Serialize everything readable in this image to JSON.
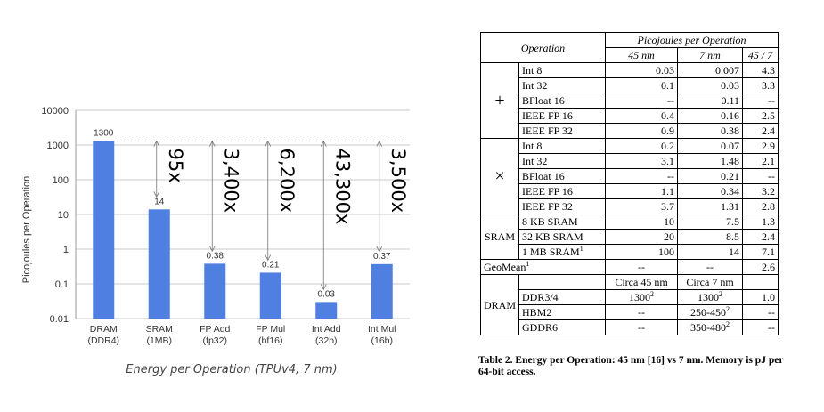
{
  "chart_data": {
    "type": "bar",
    "scale": "log",
    "ylabel": "Picojoules per Operation",
    "ylim": [
      0.01,
      10000
    ],
    "yticks": [
      "10000",
      "1000",
      "100",
      "10",
      "1",
      "0.1",
      "0.01"
    ],
    "ytick_values": [
      10000,
      1000,
      100,
      10,
      1,
      0.1,
      0.01
    ],
    "categories": [
      "DRAM\n(DDR4)",
      "SRAM\n(1MB)",
      "FP Add\n(fp32)",
      "FP Mul\n(bf16)",
      "Int Add\n(32b)",
      "Int Mul\n(16b)"
    ],
    "values": [
      1300,
      14,
      0.38,
      0.21,
      0.03,
      0.37
    ],
    "value_labels": [
      "1300",
      "14",
      "0.38",
      "0.21",
      "0.03",
      "0.37"
    ],
    "ratio_labels": [
      "95x",
      "3,400x",
      "6,200x",
      "43,300x",
      "3,500x"
    ],
    "bar_color": "#4f7fe0",
    "grid": true
  },
  "chart_caption": "Energy per Operation (TPUv4, 7 nm)",
  "table": {
    "header": {
      "operation": "Operation",
      "picojoules": "Picojoules per Operation",
      "col_45": "45 nm",
      "col_7": "7 nm",
      "col_ratio": "45 / 7"
    },
    "plus_symbol": "+",
    "times_symbol": "×",
    "plus_rows": [
      {
        "name": "Int 8",
        "v45": "0.03",
        "v7": "0.007",
        "ratio": "4.3"
      },
      {
        "name": "Int 32",
        "v45": "0.1",
        "v7": "0.03",
        "ratio": "3.3"
      },
      {
        "name": "BFloat 16",
        "v45": "--",
        "v7": "0.11",
        "ratio": "--"
      },
      {
        "name": "IEEE FP 16",
        "v45": "0.4",
        "v7": "0.16",
        "ratio": "2.5"
      },
      {
        "name": "IEEE FP 32",
        "v45": "0.9",
        "v7": "0.38",
        "ratio": "2.4"
      }
    ],
    "times_rows": [
      {
        "name": "Int 8",
        "v45": "0.2",
        "v7": "0.07",
        "ratio": "2.9"
      },
      {
        "name": "Int 32",
        "v45": "3.1",
        "v7": "1.48",
        "ratio": "2.1"
      },
      {
        "name": "BFloat 16",
        "v45": "--",
        "v7": "0.21",
        "ratio": "--"
      },
      {
        "name": "IEEE FP 16",
        "v45": "1.1",
        "v7": "0.34",
        "ratio": "3.2"
      },
      {
        "name": "IEEE FP 32",
        "v45": "3.7",
        "v7": "1.31",
        "ratio": "2.8"
      }
    ],
    "sram_label": "SRAM",
    "sram_rows": [
      {
        "name": "8 KB SRAM",
        "v45": "10",
        "v7": "7.5",
        "ratio": "1.3"
      },
      {
        "name": "32 KB SRAM",
        "v45": "20",
        "v7": "8.5",
        "ratio": "2.4"
      },
      {
        "name": "1 MB SRAM",
        "sup": "1",
        "v45": "100",
        "v7": "14",
        "ratio": "7.1"
      }
    ],
    "geomean": {
      "name": "GeoMean",
      "sup": "1",
      "v45": "--",
      "v7": "--",
      "ratio": "2.6"
    },
    "dram_label": "DRAM",
    "dram_header": {
      "c45": "Circa 45 nm",
      "c7": "Circa 7 nm"
    },
    "dram_rows": [
      {
        "name": "DDR3/4",
        "v45": "1300",
        "v45_sup": "2",
        "v7": "1300",
        "v7_sup": "2",
        "ratio": "1.0"
      },
      {
        "name": "HBM2",
        "v45": "--",
        "v45_sup": "",
        "v7": "250-450",
        "v7_sup": "2",
        "ratio": "--"
      },
      {
        "name": "GDDR6",
        "v45": "--",
        "v45_sup": "",
        "v7": "350-480",
        "v7_sup": "2",
        "ratio": "--"
      }
    ]
  },
  "table_caption": "Table 2. Energy per Operation: 45 nm [16] vs 7 nm. Memory is pJ per 64-bit access."
}
